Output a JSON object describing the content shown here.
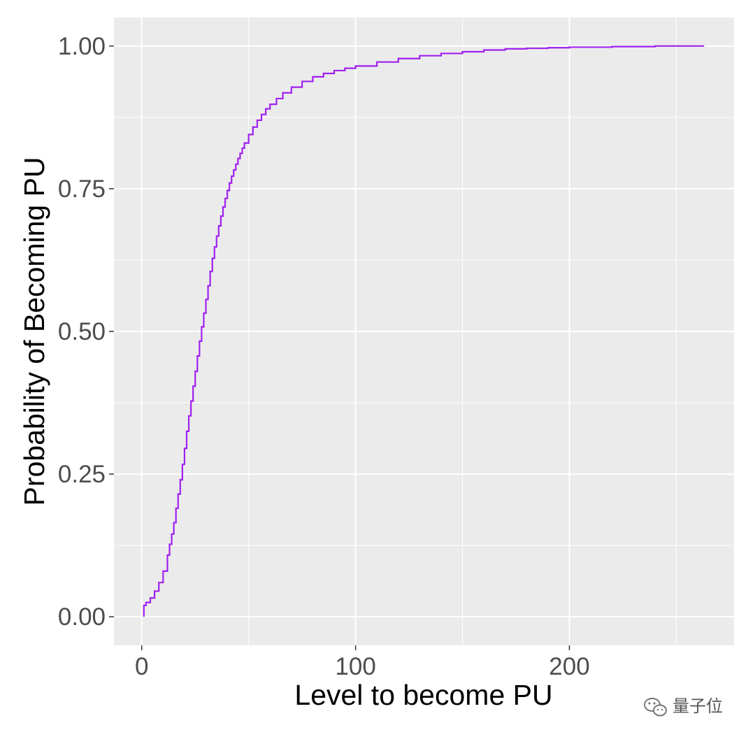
{
  "chart_data": {
    "type": "line",
    "step": true,
    "xlabel": "Level to become PU",
    "ylabel": "Probability of Becoming PU",
    "xlim": [
      -13,
      277
    ],
    "ylim": [
      -0.05,
      1.05
    ],
    "x_ticks": [
      0,
      100,
      200
    ],
    "x_tick_labels": [
      "0",
      "100",
      "200"
    ],
    "y_ticks": [
      0,
      0.25,
      0.5,
      0.75,
      1
    ],
    "y_tick_labels": [
      "0.00",
      "0.25",
      "0.50",
      "0.75",
      "1.00"
    ],
    "grid": true,
    "panel_background": "#ebebeb",
    "series": [
      {
        "color": "#a020f0",
        "x": [
          1,
          2,
          4,
          6,
          8,
          10,
          12,
          13,
          14,
          15,
          16,
          17,
          18,
          19,
          20,
          21,
          22,
          23,
          24,
          25,
          26,
          27,
          28,
          29,
          30,
          31,
          32,
          33,
          34,
          35,
          36,
          37,
          38,
          39,
          40,
          41,
          42,
          43,
          44,
          45,
          46,
          47,
          48,
          50,
          52,
          54,
          56,
          58,
          60,
          63,
          66,
          70,
          75,
          80,
          85,
          90,
          95,
          100,
          110,
          120,
          130,
          140,
          150,
          160,
          170,
          180,
          190,
          200,
          220,
          240,
          263
        ],
        "y": [
          0.02,
          0.025,
          0.033,
          0.045,
          0.06,
          0.08,
          0.108,
          0.127,
          0.145,
          0.165,
          0.19,
          0.215,
          0.24,
          0.267,
          0.295,
          0.325,
          0.352,
          0.378,
          0.404,
          0.43,
          0.457,
          0.483,
          0.508,
          0.532,
          0.556,
          0.58,
          0.605,
          0.628,
          0.648,
          0.667,
          0.685,
          0.702,
          0.718,
          0.733,
          0.747,
          0.76,
          0.772,
          0.783,
          0.793,
          0.803,
          0.812,
          0.821,
          0.83,
          0.845,
          0.858,
          0.87,
          0.88,
          0.89,
          0.898,
          0.908,
          0.918,
          0.928,
          0.938,
          0.946,
          0.952,
          0.957,
          0.961,
          0.965,
          0.972,
          0.978,
          0.983,
          0.987,
          0.99,
          0.993,
          0.995,
          0.996,
          0.997,
          0.998,
          0.999,
          1.0,
          1.0
        ]
      }
    ]
  },
  "watermark": {
    "icon": "wechat-icon",
    "text": "量子位"
  }
}
